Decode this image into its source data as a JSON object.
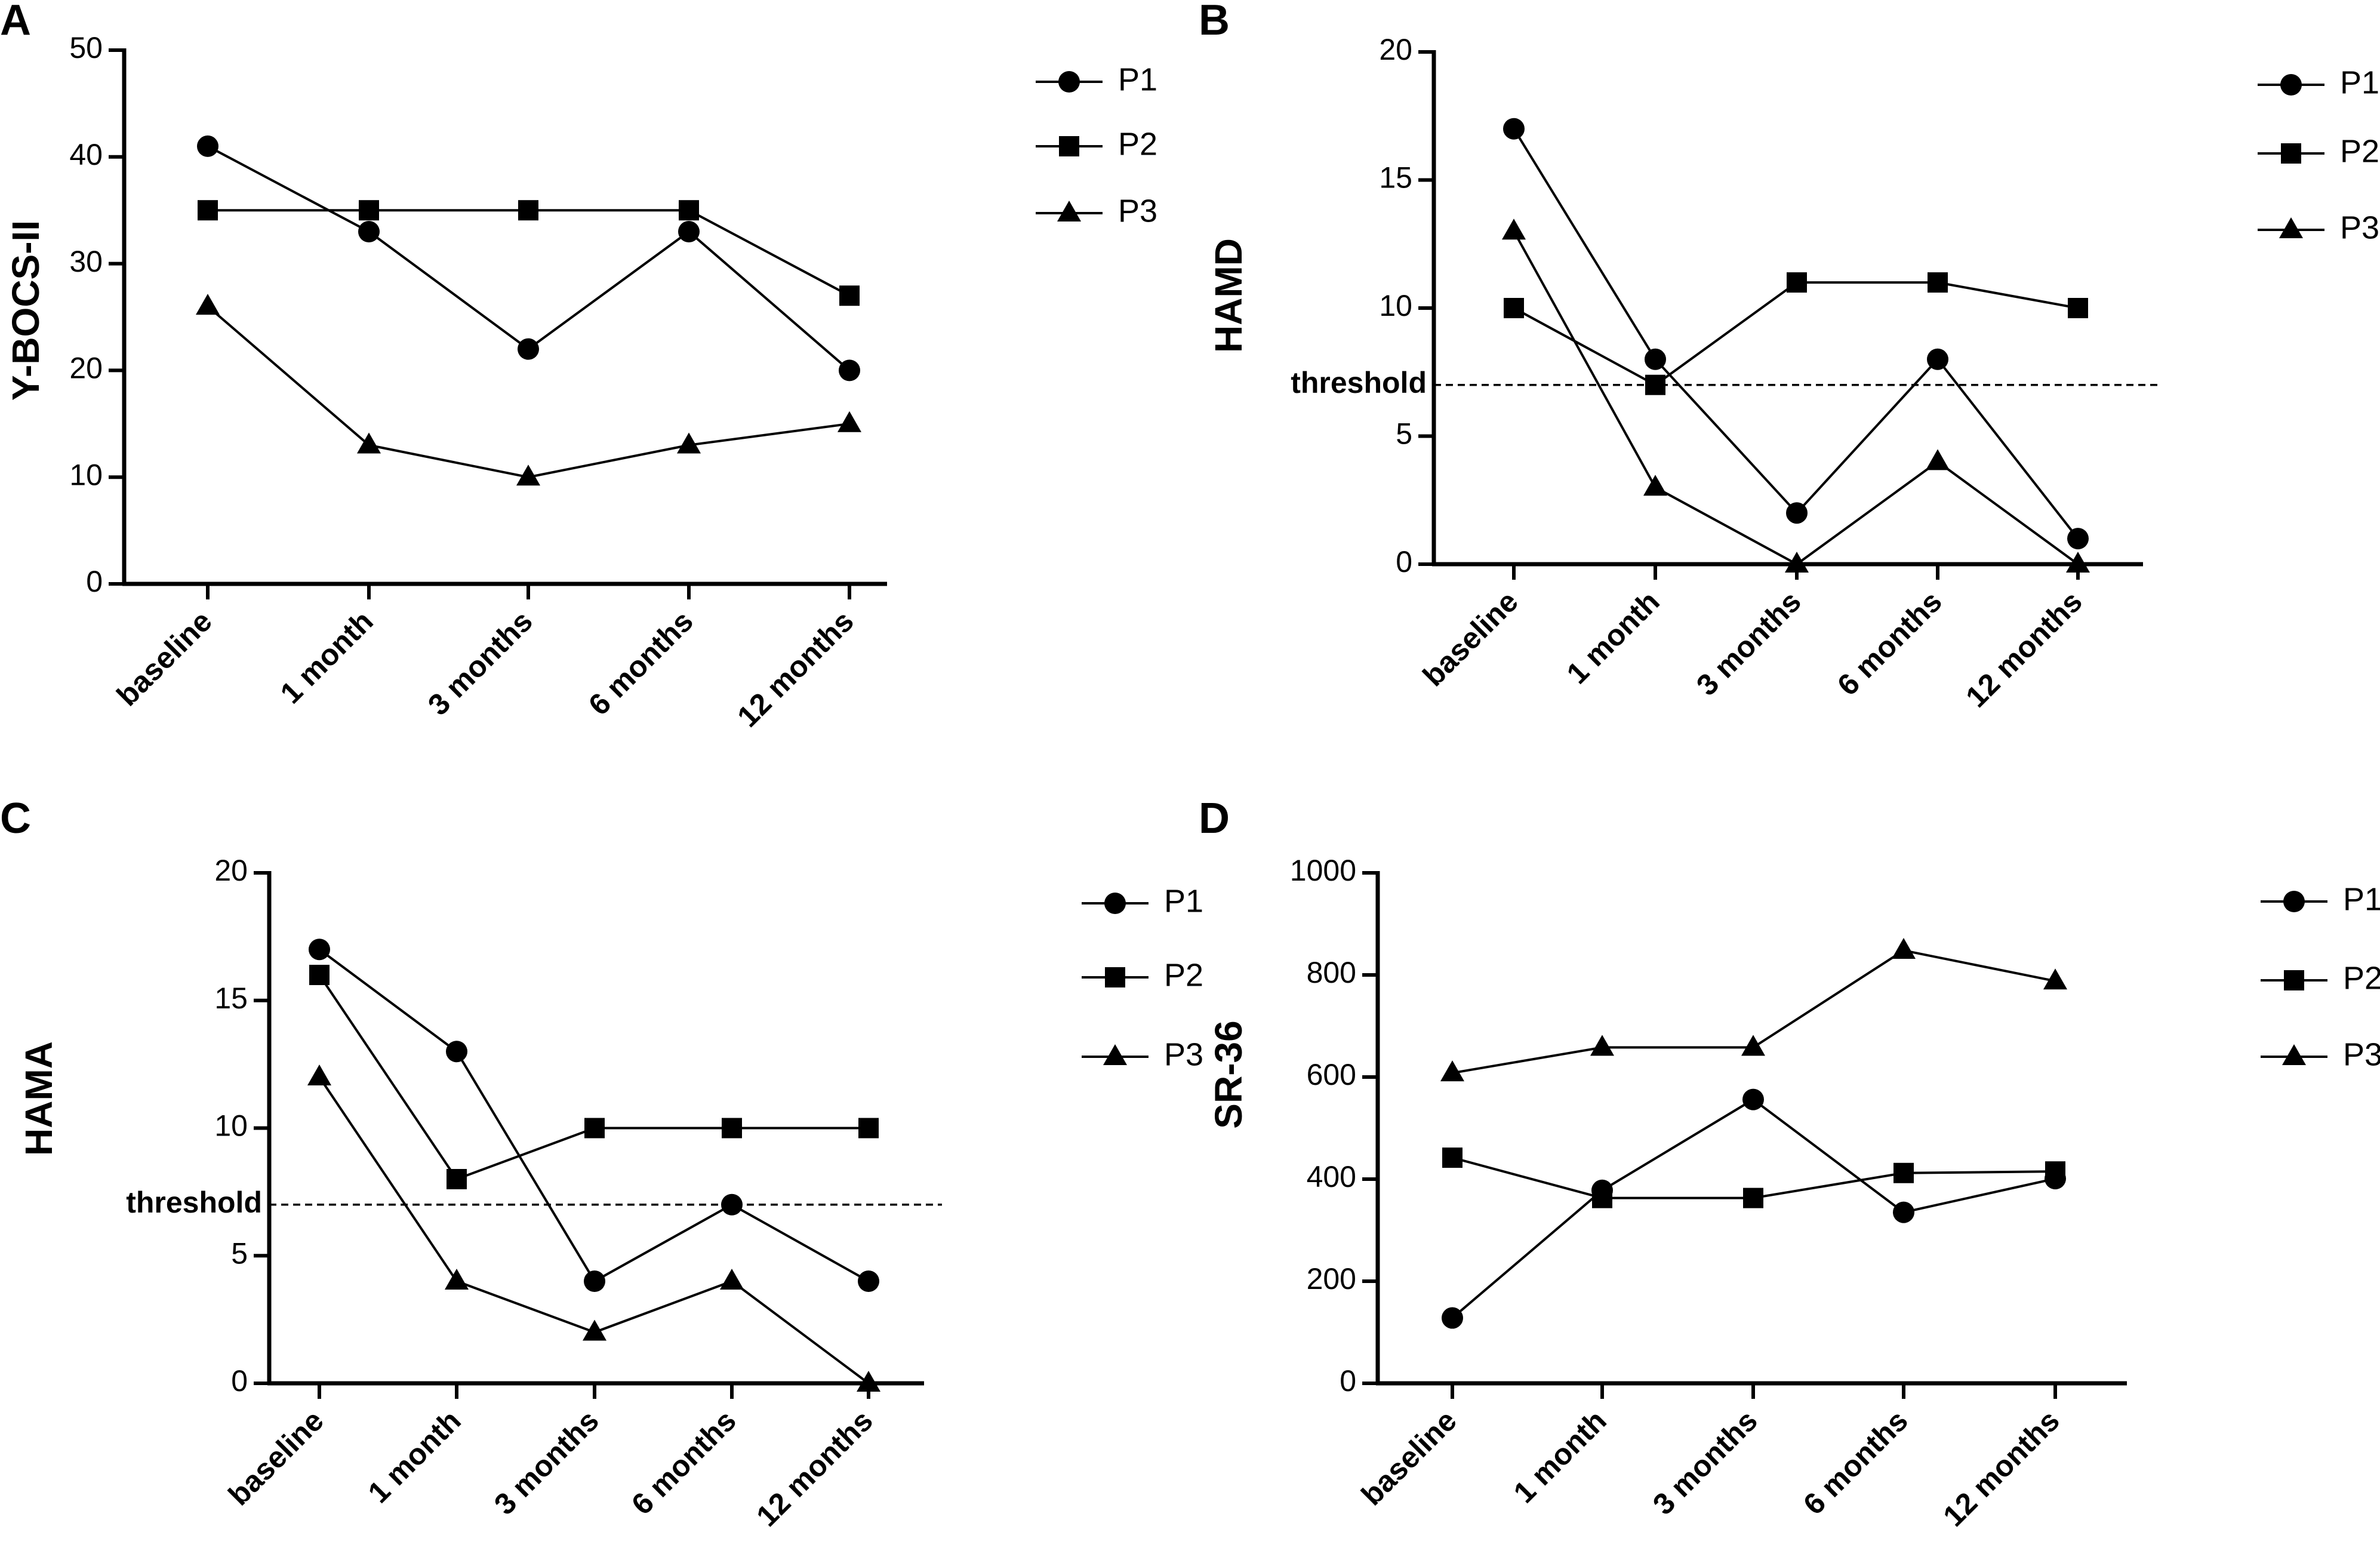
{
  "chart_data": [
    {
      "panel": "A",
      "type": "line",
      "ylabel": "Y-BOCS-II",
      "ylim": [
        0,
        50
      ],
      "yticks": [
        0,
        10,
        20,
        30,
        40,
        50
      ],
      "categories": [
        "baseline",
        "1 month",
        "3 months",
        "6 months",
        "12 months"
      ],
      "series": [
        {
          "name": "P1",
          "marker": "circle",
          "values": [
            41,
            33,
            22,
            33,
            20
          ]
        },
        {
          "name": "P2",
          "marker": "square",
          "values": [
            35,
            35,
            35,
            35,
            27
          ]
        },
        {
          "name": "P3",
          "marker": "triangle",
          "values": [
            26,
            13,
            10,
            13,
            15
          ]
        }
      ],
      "threshold": null
    },
    {
      "panel": "B",
      "type": "line",
      "ylabel": "HAMD",
      "ylim": [
        0,
        20
      ],
      "yticks": [
        0,
        5,
        10,
        15,
        20
      ],
      "categories": [
        "baseline",
        "1 month",
        "3 months",
        "6 months",
        "12 months"
      ],
      "series": [
        {
          "name": "P1",
          "marker": "circle",
          "values": [
            17,
            8,
            2,
            8,
            1
          ]
        },
        {
          "name": "P2",
          "marker": "square",
          "values": [
            10,
            7,
            11,
            11,
            10
          ]
        },
        {
          "name": "P3",
          "marker": "triangle",
          "values": [
            13,
            3,
            0,
            4,
            0
          ]
        }
      ],
      "threshold": {
        "label": "threshold",
        "value": 7
      }
    },
    {
      "panel": "C",
      "type": "line",
      "ylabel": "HAMA",
      "ylim": [
        0,
        20
      ],
      "yticks": [
        0,
        5,
        10,
        15,
        20
      ],
      "categories": [
        "baseline",
        "1 month",
        "3 months",
        "6 months",
        "12 months"
      ],
      "series": [
        {
          "name": "P1",
          "marker": "circle",
          "values": [
            17,
            13,
            4,
            7,
            4
          ]
        },
        {
          "name": "P2",
          "marker": "square",
          "values": [
            16,
            8,
            10,
            10,
            10
          ]
        },
        {
          "name": "P3",
          "marker": "triangle",
          "values": [
            12,
            4,
            2,
            4,
            0
          ]
        }
      ],
      "threshold": {
        "label": "threshold",
        "value": 7
      }
    },
    {
      "panel": "D",
      "type": "line",
      "ylabel": "SR-36",
      "ylim": [
        0,
        1000
      ],
      "yticks": [
        0,
        200,
        400,
        600,
        800,
        1000
      ],
      "categories": [
        "baseline",
        "1 month",
        "3 months",
        "6 months",
        "12 months"
      ],
      "series": [
        {
          "name": "P1",
          "marker": "circle",
          "values": [
            128,
            378,
            556,
            335,
            401
          ]
        },
        {
          "name": "P2",
          "marker": "square",
          "values": [
            442,
            363,
            363,
            412,
            415
          ]
        },
        {
          "name": "P3",
          "marker": "triangle",
          "values": [
            608,
            658,
            658,
            848,
            788
          ]
        }
      ],
      "threshold": null
    }
  ]
}
